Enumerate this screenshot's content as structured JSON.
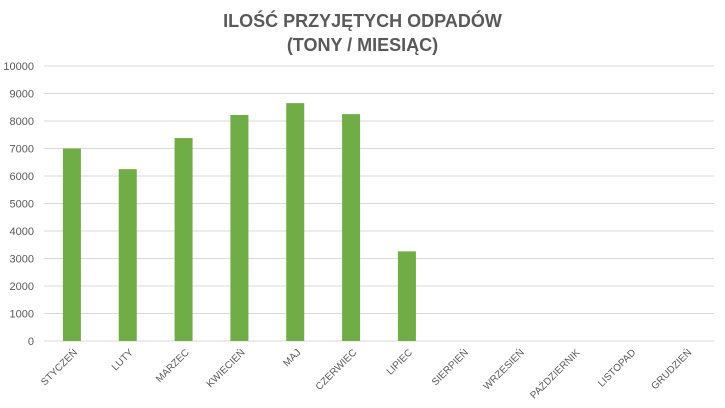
{
  "chart_data": {
    "type": "bar",
    "title_lines": [
      "ILOŚĆ PRZYJĘTYCH ODPADÓW",
      "(TONY / MIESIĄC)"
    ],
    "xlabel": "",
    "ylabel": "",
    "categories": [
      "STYCZEŃ",
      "LUTY",
      "MARZEC",
      "KWIECIEŃ",
      "MAJ",
      "CZERWIEC",
      "LIPIEC",
      "SIERPIEŃ",
      "WRZESIEŃ",
      "PAŹDZIERNIK",
      "LISTOPAD",
      "GRUDZIEŃ"
    ],
    "values": [
      7000,
      6250,
      7380,
      8220,
      8650,
      8250,
      3260,
      null,
      null,
      null,
      null,
      null
    ],
    "ylim": [
      0,
      10000
    ],
    "yticks": [
      "0",
      "1000",
      "2000",
      "3000",
      "4000",
      "5000",
      "6000",
      "7000",
      "8000",
      "9000",
      "10000"
    ],
    "grid": true,
    "legend": "none",
    "bar_color": "#70AD47",
    "grid_color": "#D9D9D9",
    "label_color": "#595959"
  }
}
